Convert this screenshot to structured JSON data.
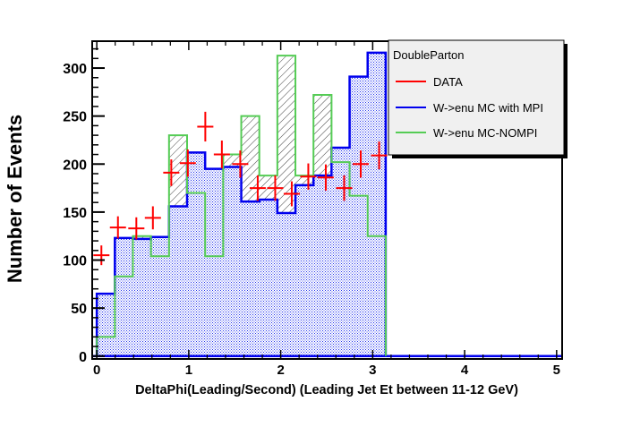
{
  "chart_data": {
    "type": "bar",
    "title": "",
    "xlabel": "DeltaPhi(Leading/Second) (Leading Jet Et between 11-12 GeV)",
    "ylabel": "Number of Events",
    "xlim": [
      -0.05,
      5.06
    ],
    "ylim": [
      -3,
      328
    ],
    "xticks": [
      "0",
      "1",
      "2",
      "3",
      "4",
      "5"
    ],
    "yticks": [
      "0",
      "50",
      "100",
      "150",
      "200",
      "250",
      "300"
    ],
    "bin_range": [
      0,
      3.1416
    ],
    "legend": {
      "title": "DoubleParton",
      "placement": "top-right",
      "entries": [
        "DATA",
        "W->enu MC with MPI",
        "W->enu MC-NOMPI"
      ]
    },
    "colors": {
      "data": "#ff0000",
      "mpi": "#0000ee",
      "nompi": "#55cc55"
    },
    "series": [
      {
        "name": "W->enu MC with MPI",
        "kind": "hist",
        "values": [
          65,
          123,
          122,
          124,
          156,
          212,
          195,
          197,
          161,
          163,
          149,
          178,
          188,
          217,
          291,
          316
        ]
      },
      {
        "name": "W->enu MC-NOMPI",
        "kind": "hist",
        "values": [
          20,
          83,
          125,
          104,
          230,
          170,
          104,
          210,
          250,
          188,
          313,
          188,
          272,
          202,
          167,
          125
        ]
      },
      {
        "name": "DATA",
        "kind": "points",
        "x": [
          0.05,
          0.23,
          0.43,
          0.61,
          0.81,
          0.99,
          1.18,
          1.36,
          1.56,
          1.75,
          1.94,
          2.12,
          2.3,
          2.49,
          2.69,
          2.87,
          3.07
        ],
        "y": [
          105,
          134,
          133,
          144,
          191,
          201,
          239,
          210,
          200,
          175,
          175,
          169,
          187,
          186,
          175,
          200,
          209
        ]
      }
    ]
  }
}
